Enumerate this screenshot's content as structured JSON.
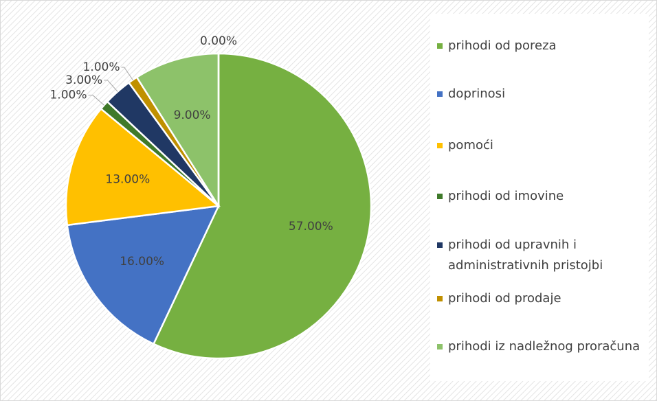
{
  "chart_data": {
    "type": "pie",
    "categories": [
      "prihodi od poreza",
      "doprinosi",
      "pomoći",
      "prihodi od imovine",
      "prihodi od upravnih i administrativnih pristojbi",
      "prihodi od prodaje",
      "prihodi iz nadležnog proračuna",
      null
    ],
    "values": [
      57,
      16,
      13,
      1,
      3,
      1,
      9,
      0
    ],
    "value_labels": [
      "57.00%",
      "16.00%",
      "13.00%",
      "1.00%",
      "3.00%",
      "1.00%",
      "9.00%",
      "0.00%"
    ],
    "colors": [
      "#76b041",
      "#4472c4",
      "#ffc000",
      "#3f7a2a",
      "#203864",
      "#c09000",
      "#8dc26a",
      "#a5a5a5"
    ]
  }
}
